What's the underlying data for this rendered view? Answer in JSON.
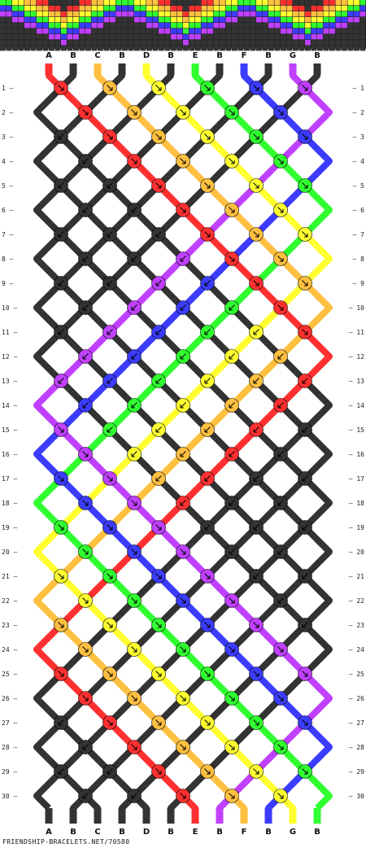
{
  "site_credit": "FRIENDSHIP-BRACELETS.NET/70580",
  "string_labels": [
    "A",
    "B",
    "C",
    "B",
    "D",
    "B",
    "E",
    "B",
    "F",
    "B",
    "G",
    "B"
  ],
  "colors": {
    "A": "#ff3030",
    "B": "#333333",
    "C": "#ffbf40",
    "D": "#ffff30",
    "E": "#30ff30",
    "F": "#3c3cff",
    "G": "#c040ff"
  },
  "row_numbers": [
    "1",
    "2",
    "3",
    "4",
    "5",
    "6",
    "7",
    "8",
    "9",
    "10",
    "11",
    "12",
    "13",
    "14",
    "15",
    "16",
    "17",
    "18",
    "19",
    "20",
    "21",
    "22",
    "23",
    "24",
    "25",
    "26",
    "27",
    "28",
    "29",
    "30"
  ]
}
